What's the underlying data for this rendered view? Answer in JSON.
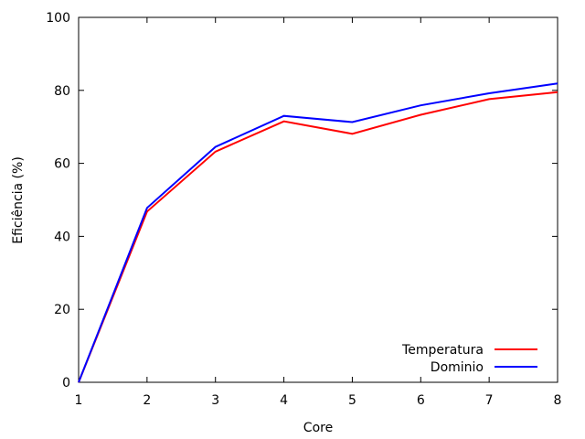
{
  "chart_data": {
    "type": "line",
    "title": "",
    "xlabel": "Core",
    "ylabel": "Eficiência (%)",
    "xlim": [
      1,
      8
    ],
    "ylim": [
      0,
      100
    ],
    "x_ticks": [
      1,
      2,
      3,
      4,
      5,
      6,
      7,
      8
    ],
    "y_ticks": [
      0,
      20,
      40,
      60,
      80,
      100
    ],
    "grid": false,
    "legend_position": "bottom-right",
    "x": [
      1,
      2,
      3,
      4,
      5,
      6,
      7,
      8
    ],
    "series": [
      {
        "name": "Temperatura",
        "color": "#ff0000",
        "values": [
          0,
          46.8,
          63.2,
          71.5,
          68.1,
          73.3,
          77.6,
          79.5
        ]
      },
      {
        "name": "Dominio",
        "color": "#0000ff",
        "values": [
          0,
          47.8,
          64.5,
          73.0,
          71.3,
          75.9,
          79.2,
          81.9
        ]
      }
    ]
  }
}
